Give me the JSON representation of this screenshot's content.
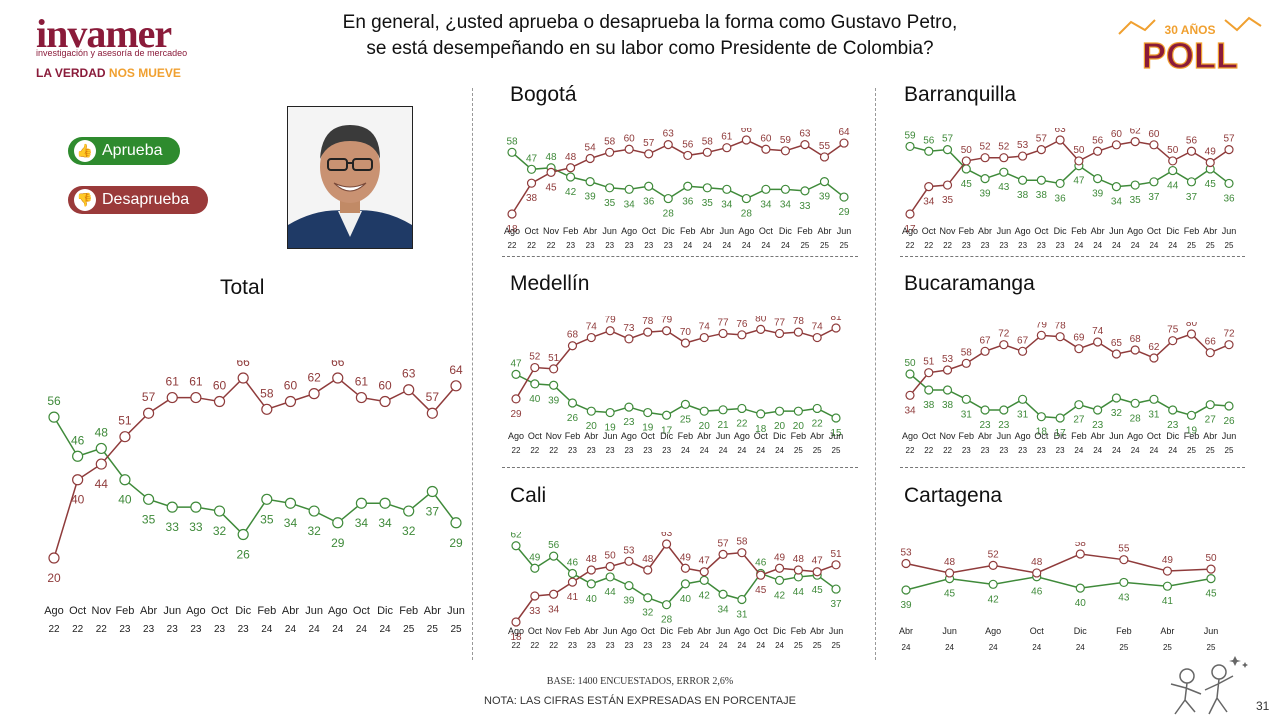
{
  "header": {
    "logo_name": "invamer",
    "logo_sub": "investigación y asesoría de mercadeo",
    "logo_tag_a": "LA VERDAD",
    "logo_tag_b": "NOS MUEVE",
    "question_line1": "En general, ¿usted aprueba o desaprueba la forma como Gustavo Petro,",
    "question_line2": "se está desempeñando en su labor como Presidente de Colombia?",
    "poll_badge_top": "30 AÑOS",
    "poll_badge_main": "POLL"
  },
  "legend": {
    "approve": "Aprueba",
    "disapprove": "Desaprueba",
    "approve_icon": "thumbs-up-icon",
    "disapprove_icon": "thumbs-down-icon"
  },
  "colors": {
    "approve": "#3f8a3a",
    "disapprove": "#8f3b3b"
  },
  "footer": {
    "base": "BASE: 1400 ENCUESTADOS, ERROR 2,6%",
    "note": "NOTA: LAS CIFRAS ESTÁN EXPRESADAS EN PORCENTAJE",
    "page": "31"
  },
  "chart_data": [
    {
      "id": "total",
      "type": "line",
      "title": "Total",
      "categories": [
        [
          "Ago",
          "22"
        ],
        [
          "Oct",
          "22"
        ],
        [
          "Nov",
          "22"
        ],
        [
          "Feb",
          "23"
        ],
        [
          "Abr",
          "23"
        ],
        [
          "Jun",
          "23"
        ],
        [
          "Ago",
          "23"
        ],
        [
          "Oct",
          "23"
        ],
        [
          "Dic",
          "23"
        ],
        [
          "Feb",
          "24"
        ],
        [
          "Abr",
          "24"
        ],
        [
          "Jun",
          "24"
        ],
        [
          "Ago",
          "24"
        ],
        [
          "Oct",
          "24"
        ],
        [
          "Dic",
          "24"
        ],
        [
          "Feb",
          "25"
        ],
        [
          "Abr",
          "25"
        ],
        [
          "Jun",
          "25"
        ]
      ],
      "series": [
        {
          "name": "Aprueba",
          "values": [
            56,
            46,
            48,
            40,
            35,
            33,
            33,
            32,
            26,
            35,
            34,
            32,
            29,
            34,
            34,
            32,
            37,
            29
          ]
        },
        {
          "name": "Desaprueba",
          "values": [
            20,
            40,
            44,
            51,
            57,
            61,
            61,
            60,
            66,
            58,
            60,
            62,
            66,
            61,
            60,
            63,
            57,
            64
          ]
        }
      ]
    },
    {
      "id": "bogota",
      "type": "line",
      "title": "Bogotá",
      "categories": [
        [
          "Ago",
          "22"
        ],
        [
          "Oct",
          "22"
        ],
        [
          "Nov",
          "22"
        ],
        [
          "Feb",
          "23"
        ],
        [
          "Abr",
          "23"
        ],
        [
          "Jun",
          "23"
        ],
        [
          "Ago",
          "23"
        ],
        [
          "Oct",
          "23"
        ],
        [
          "Dic",
          "23"
        ],
        [
          "Feb",
          "24"
        ],
        [
          "Abr",
          "24"
        ],
        [
          "Jun",
          "24"
        ],
        [
          "Ago",
          "24"
        ],
        [
          "Oct",
          "24"
        ],
        [
          "Dic",
          "24"
        ],
        [
          "Feb",
          "25"
        ],
        [
          "Abr",
          "25"
        ],
        [
          "Jun",
          "25"
        ]
      ],
      "series": [
        {
          "name": "Aprueba",
          "values": [
            58,
            47,
            48,
            42,
            39,
            35,
            34,
            36,
            28,
            36,
            35,
            34,
            28,
            34,
            34,
            33,
            39,
            29
          ]
        },
        {
          "name": "Desaprueba",
          "values": [
            18,
            38,
            45,
            48,
            54,
            58,
            60,
            57,
            63,
            56,
            58,
            61,
            66,
            60,
            59,
            63,
            55,
            64
          ]
        }
      ]
    },
    {
      "id": "barranquilla",
      "type": "line",
      "title": "Barranquilla",
      "categories": [
        [
          "Ago",
          "22"
        ],
        [
          "Oct",
          "22"
        ],
        [
          "Nov",
          "22"
        ],
        [
          "Feb",
          "23"
        ],
        [
          "Abr",
          "23"
        ],
        [
          "Jun",
          "23"
        ],
        [
          "Ago",
          "23"
        ],
        [
          "Oct",
          "23"
        ],
        [
          "Dic",
          "23"
        ],
        [
          "Feb",
          "24"
        ],
        [
          "Abr",
          "24"
        ],
        [
          "Jun",
          "24"
        ],
        [
          "Ago",
          "24"
        ],
        [
          "Oct",
          "24"
        ],
        [
          "Dic",
          "24"
        ],
        [
          "Feb",
          "25"
        ],
        [
          "Abr",
          "25"
        ],
        [
          "Jun",
          "25"
        ]
      ],
      "series": [
        {
          "name": "Aprueba",
          "values": [
            59,
            56,
            57,
            45,
            39,
            43,
            38,
            38,
            36,
            47,
            39,
            34,
            35,
            37,
            44,
            37,
            45,
            36
          ]
        },
        {
          "name": "Desaprueba",
          "values": [
            17,
            34,
            35,
            50,
            52,
            52,
            53,
            57,
            63,
            50,
            56,
            60,
            62,
            60,
            50,
            56,
            49,
            57
          ]
        }
      ]
    },
    {
      "id": "medellin",
      "type": "line",
      "title": "Medellín",
      "categories": [
        [
          "Ago",
          "22"
        ],
        [
          "Oct",
          "22"
        ],
        [
          "Nov",
          "22"
        ],
        [
          "Feb",
          "23"
        ],
        [
          "Abr",
          "23"
        ],
        [
          "Jun",
          "23"
        ],
        [
          "Ago",
          "23"
        ],
        [
          "Oct",
          "23"
        ],
        [
          "Dic",
          "23"
        ],
        [
          "Feb",
          "24"
        ],
        [
          "Abr",
          "24"
        ],
        [
          "Jun",
          "24"
        ],
        [
          "Ago",
          "24"
        ],
        [
          "Oct",
          "24"
        ],
        [
          "Dic",
          "24"
        ],
        [
          "Feb",
          "25"
        ],
        [
          "Abr",
          "25"
        ],
        [
          "Jun",
          "25"
        ]
      ],
      "series": [
        {
          "name": "Aprueba",
          "values": [
            47,
            40,
            39,
            26,
            20,
            19,
            23,
            19,
            17,
            25,
            20,
            21,
            22,
            18,
            20,
            20,
            22,
            15
          ]
        },
        {
          "name": "Desaprueba",
          "values": [
            29,
            52,
            51,
            68,
            74,
            79,
            73,
            78,
            79,
            70,
            74,
            77,
            76,
            80,
            77,
            78,
            74,
            81
          ]
        }
      ]
    },
    {
      "id": "bucaramanga",
      "type": "line",
      "title": "Bucaramanga",
      "categories": [
        [
          "Ago",
          "22"
        ],
        [
          "Oct",
          "22"
        ],
        [
          "Nov",
          "22"
        ],
        [
          "Feb",
          "23"
        ],
        [
          "Abr",
          "23"
        ],
        [
          "Jun",
          "23"
        ],
        [
          "Ago",
          "23"
        ],
        [
          "Oct",
          "23"
        ],
        [
          "Dic",
          "23"
        ],
        [
          "Feb",
          "24"
        ],
        [
          "Abr",
          "24"
        ],
        [
          "Jun",
          "24"
        ],
        [
          "Ago",
          "24"
        ],
        [
          "Oct",
          "24"
        ],
        [
          "Dic",
          "24"
        ],
        [
          "Feb",
          "25"
        ],
        [
          "Abr",
          "25"
        ],
        [
          "Jun",
          "25"
        ]
      ],
      "series": [
        {
          "name": "Aprueba",
          "values": [
            50,
            38,
            38,
            31,
            23,
            23,
            31,
            18,
            17,
            27,
            23,
            32,
            28,
            31,
            23,
            19,
            27,
            26
          ]
        },
        {
          "name": "Desaprueba",
          "values": [
            34,
            51,
            53,
            58,
            67,
            72,
            67,
            79,
            78,
            69,
            74,
            65,
            68,
            62,
            75,
            80,
            66,
            72
          ]
        }
      ]
    },
    {
      "id": "cali",
      "type": "line",
      "title": "Cali",
      "categories": [
        [
          "Ago",
          "22"
        ],
        [
          "Oct",
          "22"
        ],
        [
          "Nov",
          "22"
        ],
        [
          "Feb",
          "23"
        ],
        [
          "Abr",
          "23"
        ],
        [
          "Jun",
          "23"
        ],
        [
          "Ago",
          "23"
        ],
        [
          "Oct",
          "23"
        ],
        [
          "Dic",
          "23"
        ],
        [
          "Feb",
          "24"
        ],
        [
          "Abr",
          "24"
        ],
        [
          "Jun",
          "24"
        ],
        [
          "Ago",
          "24"
        ],
        [
          "Oct",
          "24"
        ],
        [
          "Dic",
          "24"
        ],
        [
          "Feb",
          "25"
        ],
        [
          "Abr",
          "25"
        ],
        [
          "Jun",
          "25"
        ]
      ],
      "series": [
        {
          "name": "Aprueba",
          "values": [
            62,
            49,
            56,
            46,
            40,
            44,
            39,
            32,
            28,
            40,
            42,
            34,
            31,
            46,
            42,
            44,
            45,
            37
          ]
        },
        {
          "name": "Desaprueba",
          "values": [
            18,
            33,
            34,
            41,
            48,
            50,
            53,
            48,
            63,
            49,
            47,
            57,
            58,
            45,
            49,
            48,
            47,
            51
          ]
        }
      ]
    },
    {
      "id": "cartagena",
      "type": "line",
      "title": "Cartagena",
      "categories": [
        [
          "Abr",
          "24"
        ],
        [
          "Jun",
          "24"
        ],
        [
          "Ago",
          "24"
        ],
        [
          "Oct",
          "24"
        ],
        [
          "Dic",
          "24"
        ],
        [
          "Feb",
          "25"
        ],
        [
          "Abr",
          "25"
        ],
        [
          "Jun",
          "25"
        ]
      ],
      "series": [
        {
          "name": "Aprueba",
          "values": [
            39,
            45,
            42,
            46,
            40,
            43,
            41,
            45
          ]
        },
        {
          "name": "Desaprueba",
          "values": [
            53,
            48,
            52,
            48,
            58,
            55,
            49,
            50
          ]
        }
      ]
    }
  ]
}
